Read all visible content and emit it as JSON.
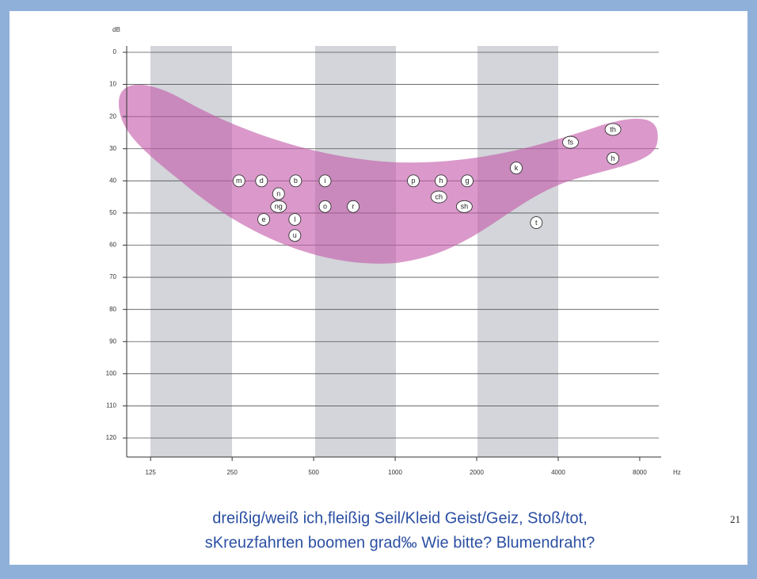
{
  "chart_data": {
    "type": "scatter",
    "ylabel": "dB",
    "xlabel": "Hz",
    "xscale": "log",
    "xlim": [
      102,
      9600
    ],
    "xticks": [
      125,
      250,
      500,
      1000,
      2000,
      4000,
      8000
    ],
    "ylim": [
      0,
      120
    ],
    "y_inverted": true,
    "yticks": [
      0,
      10,
      20,
      30,
      40,
      50,
      60,
      70,
      80,
      90,
      100,
      110,
      120
    ],
    "grid": true,
    "points": [
      {
        "label": "m",
        "x": 265,
        "y": 40
      },
      {
        "label": "d",
        "x": 321,
        "y": 40
      },
      {
        "label": "b",
        "x": 429,
        "y": 40
      },
      {
        "label": "i",
        "x": 551,
        "y": 40
      },
      {
        "label": "n",
        "x": 371,
        "y": 44
      },
      {
        "label": "ng",
        "x": 371,
        "y": 48
      },
      {
        "label": "e",
        "x": 327,
        "y": 52
      },
      {
        "label": "l",
        "x": 426,
        "y": 52
      },
      {
        "label": "u",
        "x": 426,
        "y": 57
      },
      {
        "label": "o",
        "x": 551,
        "y": 48
      },
      {
        "label": "r",
        "x": 700,
        "y": 48
      },
      {
        "label": "p",
        "x": 1167,
        "y": 40
      },
      {
        "label": "h",
        "x": 1477,
        "y": 40
      },
      {
        "label": "g",
        "x": 1845,
        "y": 40
      },
      {
        "label": "ch",
        "x": 1450,
        "y": 45
      },
      {
        "label": "sh",
        "x": 1800,
        "y": 48
      },
      {
        "label": "k",
        "x": 2800,
        "y": 36
      },
      {
        "label": "t",
        "x": 3320,
        "y": 53
      },
      {
        "label": "fs",
        "x": 4440,
        "y": 28
      },
      {
        "label": "th",
        "x": 6370,
        "y": 24
      },
      {
        "label": "h",
        "x": 6370,
        "y": 33
      }
    ],
    "caption_line1": "dreißig/weiß ich,fleißig  Seil/Kleid  Geist/Geiz, Stoß/tot,",
    "caption_line2": "sKreuzfahrten boomen grad‰ Wie bitte? Blumendraht?",
    "slide_number": "21"
  }
}
